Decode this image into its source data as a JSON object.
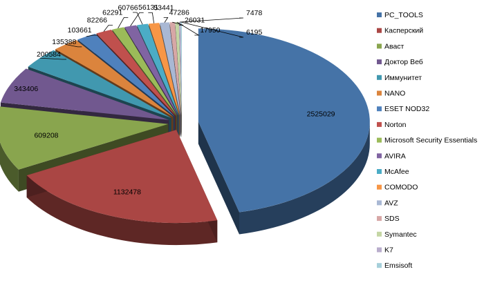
{
  "chart_data": {
    "type": "pie",
    "style": "3d-exploded",
    "title": "",
    "legend_position": "right",
    "categories": [
      "PC_TOOLS",
      "Касперский",
      "Аваст",
      "Доктор Веб",
      "Иммунитет",
      "NANO",
      "ESET NOD32",
      "Norton",
      "Microsoft Security Essentials",
      "AVIRA",
      "McAfee",
      "COMODO",
      "AVZ",
      "SDS",
      "Symantec",
      "K7",
      "Emsisoft"
    ],
    "values": [
      2525029,
      1132478,
      609208,
      343406,
      200584,
      135388,
      103661,
      82266,
      62291,
      60766,
      56131,
      53441,
      47286,
      26031,
      17950,
      7478,
      6195
    ],
    "colors": [
      "#4573A7",
      "#AA4644",
      "#89A54E",
      "#71588F",
      "#4198AF",
      "#DB843D",
      "#4F81BD",
      "#C0504D",
      "#9BBB59",
      "#8064A2",
      "#4BACC6",
      "#F79646",
      "#A9B8D4",
      "#D7A7A6",
      "#C4D6A4",
      "#B9ADCC",
      "#A5CFDA"
    ]
  }
}
